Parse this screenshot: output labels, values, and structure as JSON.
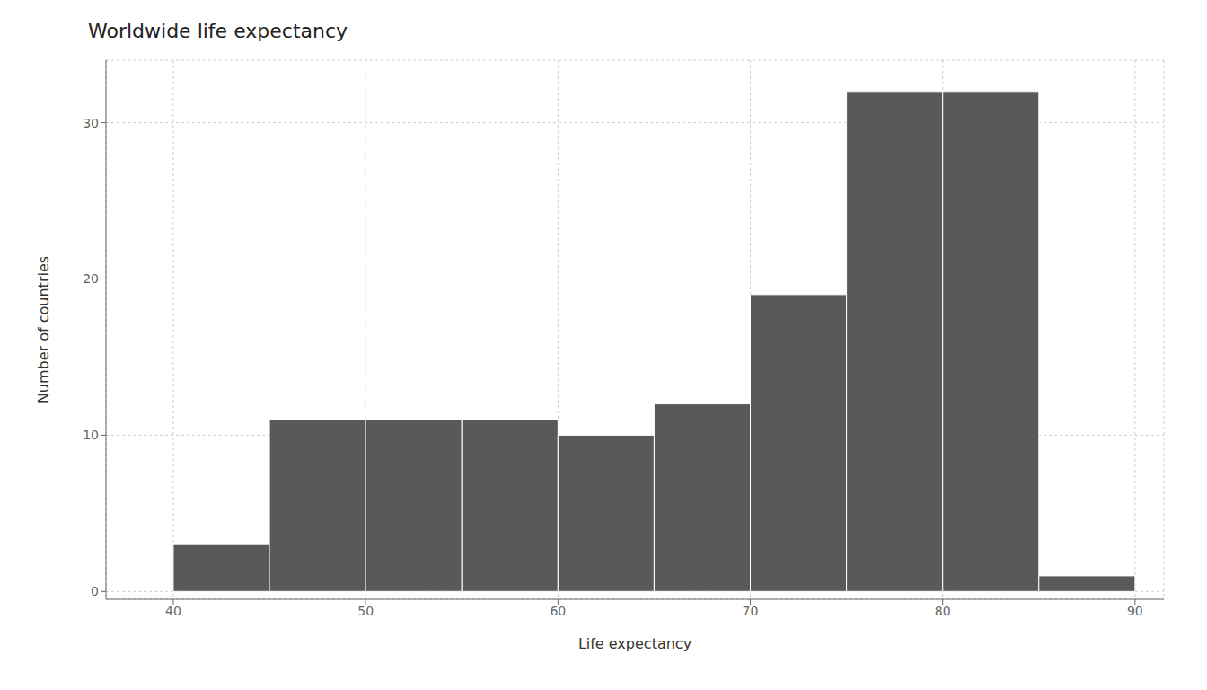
{
  "chart_data": {
    "type": "histogram",
    "title": "Worldwide life expectancy",
    "x_label": "Life expectancy",
    "y_label": "Number of countries",
    "bins": [
      40,
      45,
      50,
      55,
      60,
      65,
      70,
      75,
      80,
      85,
      90
    ],
    "values": [
      3,
      11,
      11,
      11,
      10,
      12,
      19,
      32,
      32,
      1
    ],
    "color": "#595959",
    "xlim": [
      36.5,
      91.5
    ],
    "ylim": [
      -0.5,
      34
    ],
    "xticks": [
      40,
      50,
      60,
      70,
      80,
      90
    ],
    "yticks": [
      0,
      10,
      20,
      30
    ],
    "grid": true
  }
}
